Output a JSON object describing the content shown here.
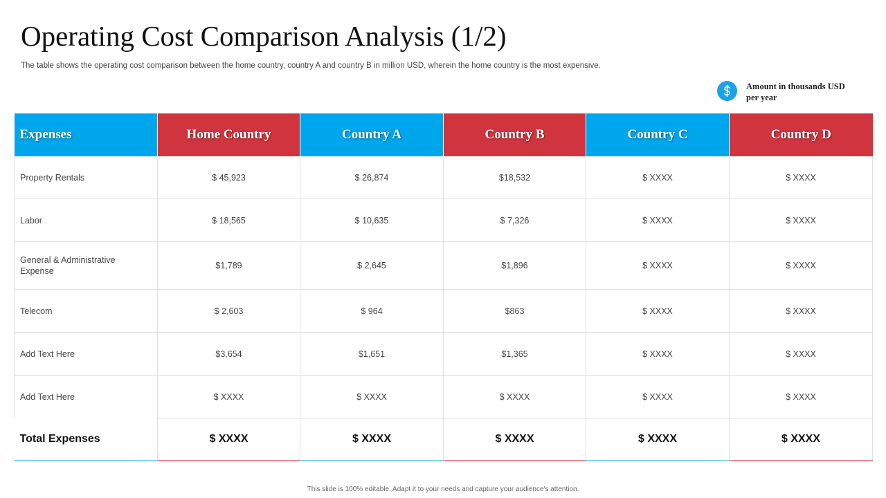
{
  "title": "Operating Cost Comparison Analysis (1/2)",
  "subtitle": "The table shows the operating cost comparison between the home country, country A  and country B in million USD, wherein the home country is the most expensive.",
  "legend": {
    "icon": "dollar-icon",
    "text": "Amount in thousands USD per year",
    "color": "#1AA3E8"
  },
  "colors": {
    "blue": "#00A6EB",
    "red": "#D0343E"
  },
  "table": {
    "headers": [
      "Expenses",
      "Home Country",
      "Country A",
      "Country B",
      "Country C",
      "Country D"
    ],
    "header_colors": [
      "blue",
      "red",
      "blue",
      "red",
      "blue",
      "red"
    ],
    "rows": [
      [
        "Property Rentals",
        "$ 45,923",
        "$ 26,874",
        "$18,532",
        "$ XXXX",
        "$ XXXX"
      ],
      [
        "Labor",
        "$ 18,565",
        "$ 10,635",
        "$ 7,326",
        "$ XXXX",
        "$ XXXX"
      ],
      [
        "General  & Administrative Expense",
        "$1,789",
        "$  2,645",
        "$1,896",
        "$ XXXX",
        "$ XXXX"
      ],
      [
        "Telecom",
        "$ 2,603",
        "$ 964",
        "$863",
        "$ XXXX",
        "$ XXXX"
      ],
      [
        "Add Text  Here",
        "$3,654",
        "$1,651",
        "$1,365",
        "$ XXXX",
        "$ XXXX"
      ],
      [
        "Add Text  Here",
        "$ XXXX",
        "$ XXXX",
        "$ XXXX",
        "$ XXXX",
        "$ XXXX"
      ]
    ],
    "total": [
      "Total Expenses",
      "$ XXXX",
      "$ XXXX",
      "$ XXXX",
      "$ XXXX",
      "$ XXXX"
    ]
  },
  "footer": "This slide is 100% editable. Adapt it to your needs and capture your audience's attention."
}
